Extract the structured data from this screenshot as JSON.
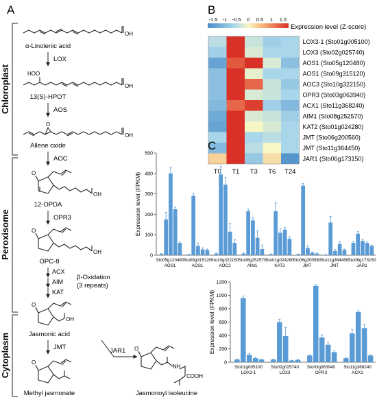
{
  "panels": {
    "a": "A",
    "b": "B",
    "c": "C"
  },
  "compartments": [
    "Chloroplast",
    "Peroxisome",
    "Cytoplasm"
  ],
  "pathway": {
    "compounds": {
      "ala": "α-Linolenic acid",
      "hpot": "13(S)-HPOT",
      "allene": "Allene oxide",
      "opda": "12-OPDA",
      "opc8": "OPC-8",
      "ja": "Jasmonic acid",
      "meja": "Methyl jasmonate",
      "jaile": "Jasmonoyl isoleucine"
    },
    "atoms": {
      "oh": "OH",
      "hoo": "HOO",
      "o": "O",
      "nh": "NH",
      "cooh": "COOH"
    },
    "enzymes": {
      "lox": "LOX",
      "aos": "AOS",
      "aoc": "AOC",
      "opr3": "OPR3",
      "acx": "ACX",
      "aim": "AIM",
      "kat": "KAT",
      "jmt": "JMT",
      "jar1": "JAR1"
    },
    "beta_oxidation": "β-Oxidation",
    "repeats": "(3 repeats)"
  },
  "heatmap": {
    "title": "Expression level (Z-score)",
    "scale_ticks": [
      "-1.5",
      "-1",
      "-0.5",
      "0",
      "0.5",
      "1",
      "1.5"
    ],
    "columns": [
      "T0",
      "T1",
      "T3",
      "T6",
      "T24"
    ],
    "rows": [
      {
        "label": "LOX3-1  (Sto01g005100)",
        "z": [
          -0.4,
          1.8,
          -0.3,
          -0.6,
          -0.5
        ]
      },
      {
        "label": "LOX3  (Sto02g025740)",
        "z": [
          -0.6,
          1.8,
          -0.2,
          -0.5,
          -0.5
        ]
      },
      {
        "label": "AOS1  (Sto05g120480)",
        "z": [
          -1.2,
          1.2,
          1.5,
          -0.2,
          -0.8
        ]
      },
      {
        "label": "AOS1  (Sto09g315120)",
        "z": [
          -0.8,
          1.8,
          -0.1,
          -0.5,
          -0.5
        ]
      },
      {
        "label": "AOC3  (Sto10g322150)",
        "z": [
          -0.8,
          1.5,
          1.1,
          -0.3,
          -0.7
        ]
      },
      {
        "label": "OPR3  (Sto03g063940)",
        "z": [
          -0.8,
          1.8,
          -0.2,
          -0.3,
          -0.5
        ]
      },
      {
        "label": "ACX1  (Sto11g368240)",
        "z": [
          -0.9,
          1.1,
          1.4,
          -0.6,
          -0.9
        ]
      },
      {
        "label": "AIM1  (Sto08g252570)",
        "z": [
          -1.1,
          1.7,
          -0.2,
          -0.3,
          -0.6
        ]
      },
      {
        "label": "KAT2  (Sto01g024280)",
        "z": [
          -1.2,
          1.7,
          0.0,
          -0.2,
          -0.5
        ]
      },
      {
        "label": "JMT  (Sto06g200560)",
        "z": [
          -0.5,
          1.8,
          -0.5,
          -0.4,
          -0.5
        ]
      },
      {
        "label": "JMT  (Sto11g364450)",
        "z": [
          -0.9,
          1.8,
          -0.4,
          0.0,
          -0.5
        ]
      },
      {
        "label": "JAR1  (Sto06g173150)",
        "z": [
          0.3,
          1.7,
          -0.7,
          0.2,
          -1.4
        ]
      }
    ]
  },
  "chart_data": [
    {
      "type": "bar",
      "ylabel": "Expression level (FPKM)",
      "ylim": [
        0,
        500
      ],
      "yticks": [
        0,
        100,
        200,
        300,
        400,
        500
      ],
      "groups": [
        {
          "id": "Sto05g120480",
          "gene": "AOS1",
          "values": [
            5,
            175,
            400,
            225,
            60
          ],
          "errors": [
            3,
            35,
            30,
            10,
            5
          ]
        },
        {
          "id": "Sto09g315120",
          "gene": "AOS1",
          "values": [
            3,
            290,
            45,
            28,
            25
          ],
          "errors": [
            2,
            12,
            15,
            8,
            5
          ]
        },
        {
          "id": "Sto10g322150",
          "gene": "AOC3",
          "values": [
            8,
            395,
            345,
            115,
            60
          ],
          "errors": [
            4,
            40,
            35,
            40,
            15
          ]
        },
        {
          "id": "Sto08g252570",
          "gene": "AIM1",
          "values": [
            8,
            215,
            170,
            85,
            30
          ],
          "errors": [
            3,
            10,
            15,
            35,
            20
          ]
        },
        {
          "id": "Sto01g024280",
          "gene": "KAT2",
          "values": [
            4,
            215,
            110,
            125,
            80
          ],
          "errors": [
            2,
            40,
            20,
            10,
            10
          ]
        },
        {
          "id": "Sto06g200560",
          "gene": "JMT",
          "values": [
            4,
            340,
            35,
            12,
            8
          ],
          "errors": [
            2,
            10,
            12,
            4,
            3
          ]
        },
        {
          "id": "Sto11g364450",
          "gene": "JMT",
          "values": [
            2,
            160,
            20,
            55,
            25
          ],
          "errors": [
            1,
            30,
            8,
            10,
            5
          ]
        },
        {
          "id": "Sto06g173150",
          "gene": "JAR1",
          "values": [
            60,
            105,
            70,
            60,
            45
          ],
          "errors": [
            8,
            10,
            8,
            5,
            5
          ]
        }
      ]
    },
    {
      "type": "bar",
      "ylabel": "Expression level (FPKM)",
      "ylim": [
        0,
        1200
      ],
      "yticks": [
        0,
        200,
        400,
        600,
        800,
        1000,
        1200
      ],
      "groups": [
        {
          "id": "Sto01g005100",
          "gene": "LOX3-1",
          "values": [
            40,
            960,
            110,
            60,
            40
          ],
          "errors": [
            5,
            30,
            20,
            10,
            5
          ]
        },
        {
          "id": "Sto02g025740",
          "gene": "LOX3",
          "values": [
            40,
            600,
            390,
            25,
            35
          ],
          "errors": [
            5,
            40,
            130,
            5,
            5
          ]
        },
        {
          "id": "Sto03g063940",
          "gene": "OPR3",
          "values": [
            100,
            1140,
            370,
            260,
            150
          ],
          "errors": [
            10,
            20,
            40,
            40,
            20
          ]
        },
        {
          "id": "Sto11g368240",
          "gene": "ACX1",
          "values": [
            60,
            430,
            750,
            510,
            100
          ],
          "errors": [
            5,
            60,
            20,
            60,
            10
          ]
        }
      ]
    }
  ]
}
